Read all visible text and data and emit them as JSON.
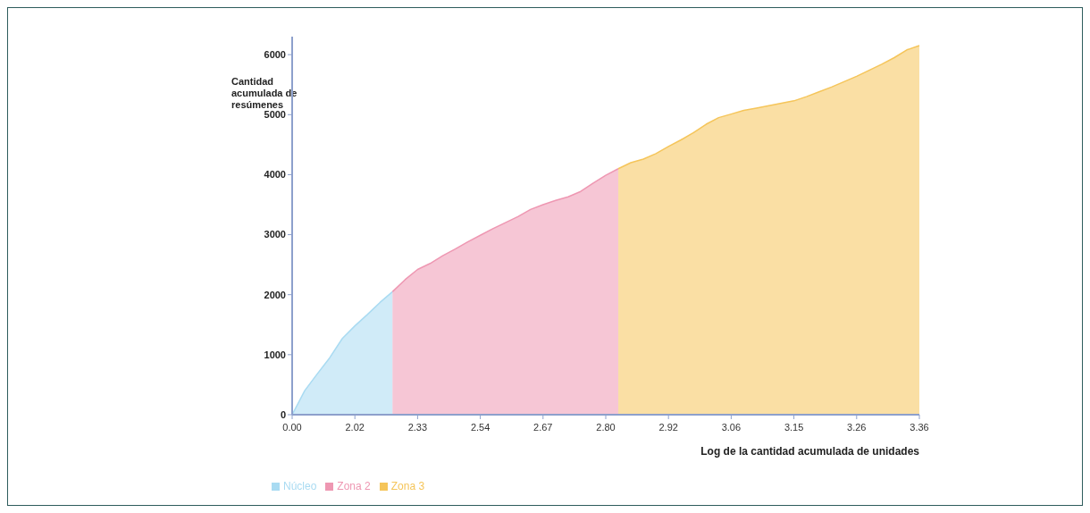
{
  "chart_data": {
    "type": "area",
    "xlabel": "Log de la cantidad acumulada de unidades",
    "ylabel": "Cantidad acumulada de resúmenes",
    "categories": [
      "0.00",
      null,
      null,
      null,
      null,
      "2.02",
      null,
      null,
      null,
      null,
      "2.33",
      null,
      null,
      null,
      null,
      "2.54",
      null,
      null,
      null,
      null,
      "2.67",
      null,
      null,
      null,
      null,
      "2.80",
      null,
      null,
      null,
      null,
      "2.92",
      null,
      null,
      null,
      null,
      "3.06",
      null,
      null,
      null,
      null,
      "3.15",
      null,
      null,
      null,
      null,
      "3.26",
      null,
      null,
      null,
      null,
      "3.36"
    ],
    "series": [
      {
        "name": "Núcleo",
        "color": "#a9dbf2",
        "values": [
          0,
          400,
          680,
          950,
          1270,
          1480,
          1670,
          1870,
          2050,
          null,
          null,
          null,
          null,
          null,
          null,
          null,
          null,
          null,
          null,
          null,
          null,
          null,
          null,
          null,
          null,
          null,
          null,
          null,
          null,
          null,
          null,
          null,
          null,
          null,
          null,
          null,
          null,
          null,
          null,
          null,
          null,
          null,
          null,
          null,
          null,
          null,
          null,
          null,
          null,
          null,
          null
        ]
      },
      {
        "name": "Zona 2",
        "color": "#ee97b2",
        "values": [
          null,
          null,
          null,
          null,
          null,
          null,
          null,
          null,
          2050,
          2250,
          2420,
          2520,
          2650,
          2760,
          2880,
          2990,
          3100,
          3200,
          3300,
          3420,
          3500,
          3570,
          3630,
          3720,
          3860,
          3990,
          4100,
          null,
          null,
          null,
          null,
          null,
          null,
          null,
          null,
          null,
          null,
          null,
          null,
          null,
          null,
          null,
          null,
          null,
          null,
          null,
          null,
          null,
          null,
          null,
          null
        ]
      },
      {
        "name": "Zona 3",
        "color": "#f5c55a",
        "values": [
          null,
          null,
          null,
          null,
          null,
          null,
          null,
          null,
          null,
          null,
          null,
          null,
          null,
          null,
          null,
          null,
          null,
          null,
          null,
          null,
          null,
          null,
          null,
          null,
          null,
          null,
          4100,
          4200,
          4260,
          4350,
          4470,
          4580,
          4700,
          4840,
          4950,
          5010,
          5070,
          5110,
          5150,
          5190,
          5230,
          5300,
          5380,
          5460,
          5550,
          5640,
          5740,
          5840,
          5950,
          6080,
          6150
        ]
      }
    ],
    "ylim": [
      0,
      6300
    ],
    "yticks": [
      0,
      1000,
      2000,
      3000,
      4000,
      5000,
      6000
    ],
    "grid": false,
    "legend": "bottom left"
  }
}
